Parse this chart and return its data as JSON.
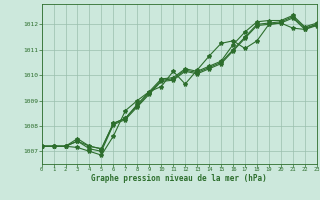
{
  "x_hours": [
    0,
    1,
    2,
    3,
    4,
    5,
    6,
    7,
    8,
    9,
    10,
    11,
    12,
    13,
    14,
    15,
    16,
    17,
    18,
    19,
    20,
    21,
    22,
    23
  ],
  "line1": [
    1007.2,
    1007.2,
    1007.2,
    1007.4,
    1007.2,
    1007.1,
    1008.1,
    1008.3,
    1008.8,
    1009.3,
    1009.8,
    1009.85,
    1010.2,
    1010.1,
    1010.3,
    1010.5,
    1011.0,
    1011.5,
    1012.0,
    1012.05,
    1012.1,
    1012.3,
    1011.85,
    1012.0
  ],
  "line2": [
    1007.2,
    1007.2,
    1007.2,
    1007.5,
    1007.2,
    1007.1,
    1008.1,
    1008.3,
    1008.85,
    1009.35,
    1009.85,
    1009.9,
    1010.25,
    1010.15,
    1010.35,
    1010.55,
    1011.2,
    1011.7,
    1012.1,
    1012.15,
    1012.15,
    1012.35,
    1011.9,
    1012.05
  ],
  "line3": [
    1007.2,
    1007.2,
    1007.2,
    1007.15,
    1007.0,
    1006.85,
    1007.6,
    1008.6,
    1009.0,
    1009.35,
    1009.55,
    1010.15,
    1009.65,
    1010.2,
    1010.75,
    1011.25,
    1011.35,
    1011.05,
    1011.35,
    1012.0,
    1012.05,
    1011.85,
    1011.8,
    1012.0
  ],
  "line4": [
    1007.2,
    1007.2,
    1007.2,
    1007.4,
    1007.1,
    1007.0,
    1008.05,
    1008.25,
    1008.75,
    1009.25,
    1009.75,
    1009.8,
    1010.15,
    1010.05,
    1010.25,
    1010.45,
    1010.95,
    1011.45,
    1011.95,
    1012.0,
    1012.05,
    1012.25,
    1011.8,
    1011.95
  ],
  "line_color": "#2d6e2d",
  "bg_color": "#cce8dc",
  "grid_color": "#9abfae",
  "xlabel": "Graphe pression niveau de la mer (hPa)",
  "ylim": [
    1006.5,
    1012.8
  ],
  "xlim": [
    0,
    23
  ],
  "yticks": [
    1007,
    1008,
    1009,
    1010,
    1011,
    1012
  ],
  "xticks": [
    0,
    1,
    2,
    3,
    4,
    5,
    6,
    7,
    8,
    9,
    10,
    11,
    12,
    13,
    14,
    15,
    16,
    17,
    18,
    19,
    20,
    21,
    22,
    23
  ],
  "marker": "*",
  "markersize": 3.0,
  "linewidth": 0.8
}
